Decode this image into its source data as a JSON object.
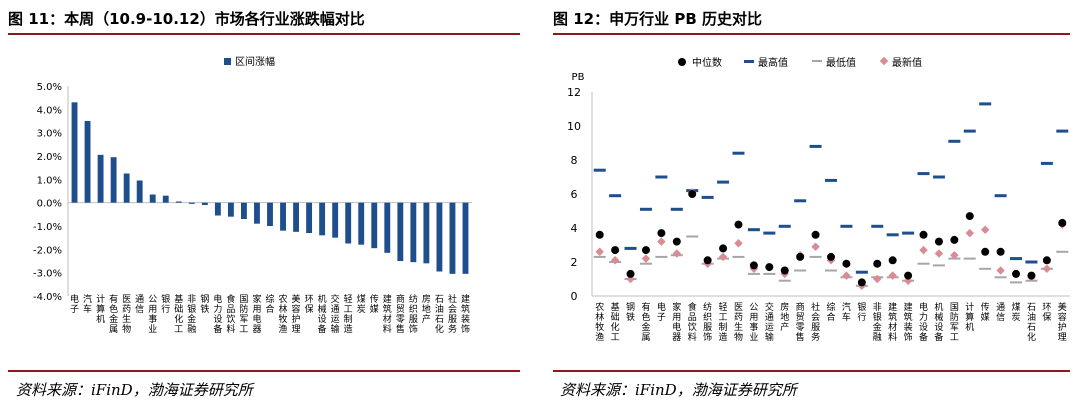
{
  "left": {
    "title": "图 11：本周（10.9-10.12）市场各行业涨跌幅对比",
    "source": "资料来源：iFinD，渤海证券研究所"
  },
  "right": {
    "title": "图 12：申万行业 PB 历史对比",
    "source": "资料来源：iFinD，渤海证券研究所"
  },
  "colors": {
    "bar": "#1f4e8c",
    "median": "#000000",
    "max": "#1f4e8c",
    "min": "#a6a6a6",
    "latest": "#d98c96",
    "rule": "#8b1a1a"
  },
  "chart_data": [
    {
      "type": "bar",
      "legend": [
        "区间涨幅"
      ],
      "legend_position": "top",
      "ylim": [
        -4.0,
        5.0
      ],
      "yticks": [
        "5.0%",
        "4.0%",
        "3.0%",
        "2.0%",
        "1.0%",
        "0.0%",
        "-1.0%",
        "-2.0%",
        "-3.0%",
        "-4.0%"
      ],
      "categories": [
        "电子",
        "汽车",
        "计算机",
        "有色金属",
        "医药生物",
        "通信",
        "公用事业",
        "银行",
        "基础化工",
        "非银金融",
        "钢铁",
        "电力设备",
        "食品饮料",
        "国防军工",
        "家用电器",
        "综合",
        "农林牧渔",
        "美容护理",
        "环保",
        "机械设备",
        "交通运输",
        "轻工制造",
        "煤炭",
        "传媒",
        "建筑材料",
        "商贸零售",
        "纺织服饰",
        "房地产",
        "石油石化",
        "社会服务",
        "建筑装饰"
      ],
      "series": [
        {
          "name": "区间涨幅",
          "values": [
            4.3,
            3.5,
            2.05,
            1.95,
            1.25,
            0.95,
            0.35,
            0.3,
            0.05,
            -0.05,
            -0.1,
            -0.55,
            -0.6,
            -0.7,
            -0.9,
            -1.0,
            -1.2,
            -1.25,
            -1.3,
            -1.4,
            -1.5,
            -1.75,
            -1.8,
            -1.95,
            -2.15,
            -2.5,
            -2.55,
            -2.6,
            -2.95,
            -3.05,
            -3.05
          ]
        }
      ]
    },
    {
      "type": "scatter",
      "legend": [
        "中位数",
        "最高值",
        "最低值",
        "最新值"
      ],
      "legend_position": "top",
      "ylabel": "PB",
      "ylim": [
        0,
        12
      ],
      "yticks": [
        "0",
        "2",
        "4",
        "6",
        "8",
        "10",
        "12"
      ],
      "categories": [
        "农林牧渔",
        "基础化工",
        "钢铁",
        "有色金属",
        "电子",
        "家用电器",
        "食品饮料",
        "纺织服饰",
        "轻工制造",
        "医药生物",
        "公用事业",
        "交通运输",
        "房地产",
        "商贸零售",
        "社会服务",
        "综合",
        "汽车",
        "银行",
        "非银金融",
        "建筑材料",
        "建筑装饰",
        "电力设备",
        "机械设备",
        "国防军工",
        "计算机",
        "传媒",
        "通信",
        "煤炭",
        "石油石化",
        "环保",
        "美容护理"
      ],
      "series": [
        {
          "name": "中位数",
          "values": [
            3.6,
            2.7,
            1.3,
            2.7,
            3.7,
            3.2,
            6.0,
            2.1,
            2.8,
            4.2,
            1.8,
            1.7,
            1.5,
            2.3,
            3.6,
            2.3,
            1.9,
            0.8,
            1.9,
            2.1,
            1.2,
            3.6,
            3.2,
            3.3,
            4.7,
            2.6,
            2.6,
            1.3,
            1.2,
            2.1,
            4.3
          ]
        },
        {
          "name": "最高值",
          "values": [
            7.4,
            5.9,
            2.8,
            5.1,
            7.0,
            5.1,
            6.2,
            5.8,
            6.7,
            8.4,
            3.9,
            3.7,
            4.1,
            5.6,
            8.8,
            6.8,
            4.1,
            1.4,
            4.1,
            3.6,
            3.7,
            7.2,
            7.0,
            9.1,
            9.7,
            11.3,
            5.9,
            2.2,
            2.0,
            7.8,
            9.7
          ]
        },
        {
          "name": "最低值",
          "values": [
            2.3,
            2.0,
            1.0,
            1.9,
            2.3,
            2.4,
            3.5,
            1.9,
            2.2,
            2.3,
            1.3,
            1.3,
            0.9,
            1.5,
            2.3,
            1.5,
            1.1,
            0.6,
            1.1,
            1.1,
            0.9,
            1.9,
            1.8,
            2.2,
            2.2,
            1.6,
            1.1,
            0.8,
            0.9,
            1.6,
            2.6
          ]
        },
        {
          "name": "最新值",
          "values": [
            2.6,
            2.1,
            1.0,
            2.2,
            3.2,
            2.5,
            6.1,
            1.9,
            2.3,
            3.1,
            1.6,
            1.7,
            1.3,
            2.4,
            2.9,
            2.1,
            1.2,
            0.6,
            1.0,
            1.2,
            0.9,
            2.7,
            2.5,
            2.4,
            3.7,
            3.9,
            1.5,
            1.3,
            1.1,
            1.6,
            4.2
          ]
        }
      ]
    }
  ]
}
